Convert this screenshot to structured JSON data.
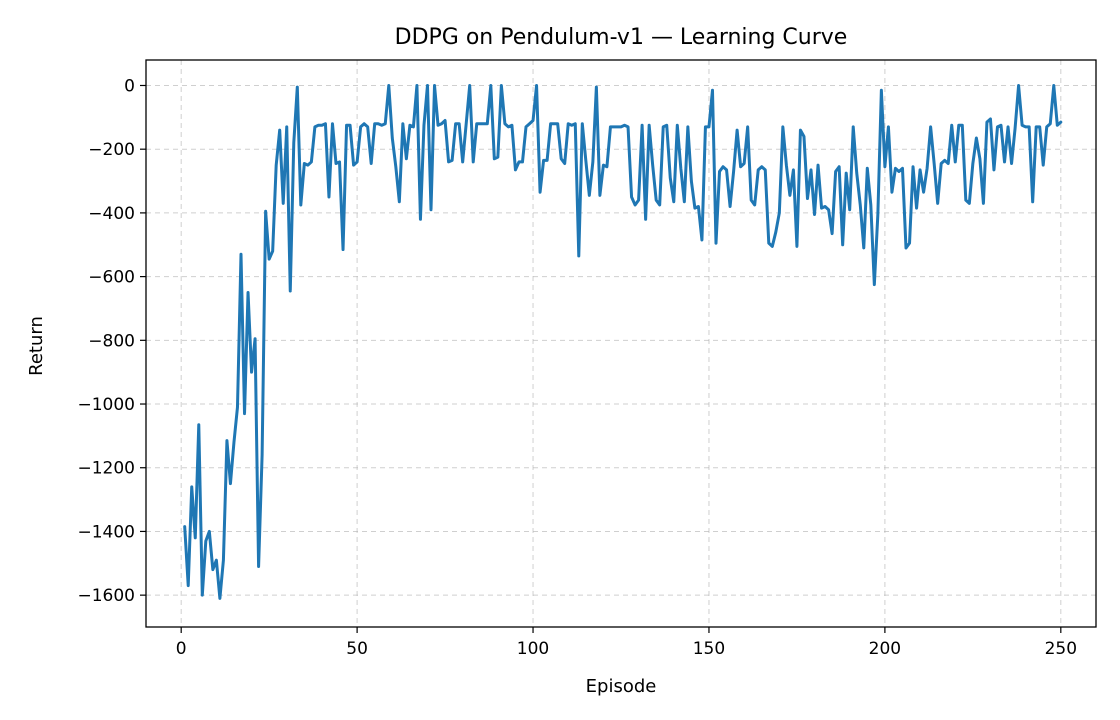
{
  "chart_data": {
    "type": "line",
    "title": "DDPG on Pendulum-v1 — Learning Curve",
    "xlabel": "Episode",
    "ylabel": "Return",
    "xlim": [
      -10,
      260
    ],
    "ylim": [
      -1700,
      80
    ],
    "xticks": [
      0,
      50,
      100,
      150,
      200,
      250
    ],
    "yticks": [
      0,
      -200,
      -400,
      -600,
      -800,
      -1000,
      -1200,
      -1400,
      -1600
    ],
    "xtick_labels": [
      "0",
      "50",
      "100",
      "150",
      "200",
      "250"
    ],
    "ytick_labels": [
      "0",
      "−200",
      "−400",
      "−600",
      "−800",
      "−1000",
      "−1200",
      "−1400",
      "−1600"
    ],
    "grid": true,
    "color": "#1f77b4",
    "series": [
      {
        "x_start": 1,
        "values": [
          -1385,
          -1570,
          -1260,
          -1420,
          -1065,
          -1600,
          -1430,
          -1400,
          -1520,
          -1490,
          -1610,
          -1490,
          -1115,
          -1250,
          -1120,
          -1010,
          -530,
          -1030,
          -650,
          -900,
          -795,
          -1510,
          -1160,
          -395,
          -545,
          -520,
          -250,
          -140,
          -370,
          -130,
          -645,
          -180,
          -5,
          -375,
          -245,
          -250,
          -240,
          -130,
          -125,
          -125,
          -120,
          -350,
          -120,
          -245,
          -240,
          -515,
          -125,
          -125,
          -250,
          -240,
          -130,
          -120,
          -130,
          -245,
          -120,
          -120,
          -125,
          -120,
          0,
          -165,
          -255,
          -365,
          -120,
          -230,
          -125,
          -130,
          0,
          -420,
          -125,
          0,
          -390,
          0,
          -125,
          -120,
          -110,
          -240,
          -235,
          -120,
          -120,
          -240,
          -120,
          0,
          -240,
          -120,
          -120,
          -120,
          -120,
          0,
          -230,
          -225,
          0,
          -120,
          -130,
          -125,
          -265,
          -240,
          -240,
          -130,
          -120,
          -110,
          0,
          -335,
          -235,
          -235,
          -120,
          -120,
          -120,
          -230,
          -245,
          -120,
          -125,
          -120,
          -535,
          -120,
          -235,
          -345,
          -240,
          -5,
          -345,
          -250,
          -255,
          -130,
          -130,
          -130,
          -130,
          -125,
          -130,
          -350,
          -375,
          -360,
          -125,
          -420,
          -125,
          -250,
          -360,
          -375,
          -130,
          -125,
          -290,
          -365,
          -125,
          -260,
          -365,
          -130,
          -300,
          -385,
          -380,
          -485,
          -130,
          -130,
          -15,
          -495,
          -270,
          -255,
          -265,
          -380,
          -270,
          -140,
          -255,
          -245,
          -130,
          -360,
          -375,
          -265,
          -255,
          -265,
          -495,
          -505,
          -460,
          -400,
          -130,
          -250,
          -345,
          -265,
          -505,
          -140,
          -160,
          -355,
          -265,
          -405,
          -250,
          -385,
          -380,
          -390,
          -465,
          -270,
          -255,
          -500,
          -275,
          -390,
          -130,
          -275,
          -375,
          -510,
          -260,
          -375,
          -625,
          -405,
          -15,
          -255,
          -130,
          -335,
          -260,
          -270,
          -260,
          -510,
          -495,
          -255,
          -385,
          -265,
          -335,
          -260,
          -130,
          -245,
          -370,
          -245,
          -235,
          -245,
          -125,
          -240,
          -125,
          -125,
          -360,
          -370,
          -245,
          -165,
          -230,
          -370,
          -115,
          -105,
          -265,
          -130,
          -125,
          -240,
          -130,
          -245,
          -135,
          0,
          -125,
          -130,
          -130,
          -365,
          -130,
          -130,
          -250,
          -130,
          -120,
          0,
          -125,
          -115
        ]
      }
    ]
  }
}
